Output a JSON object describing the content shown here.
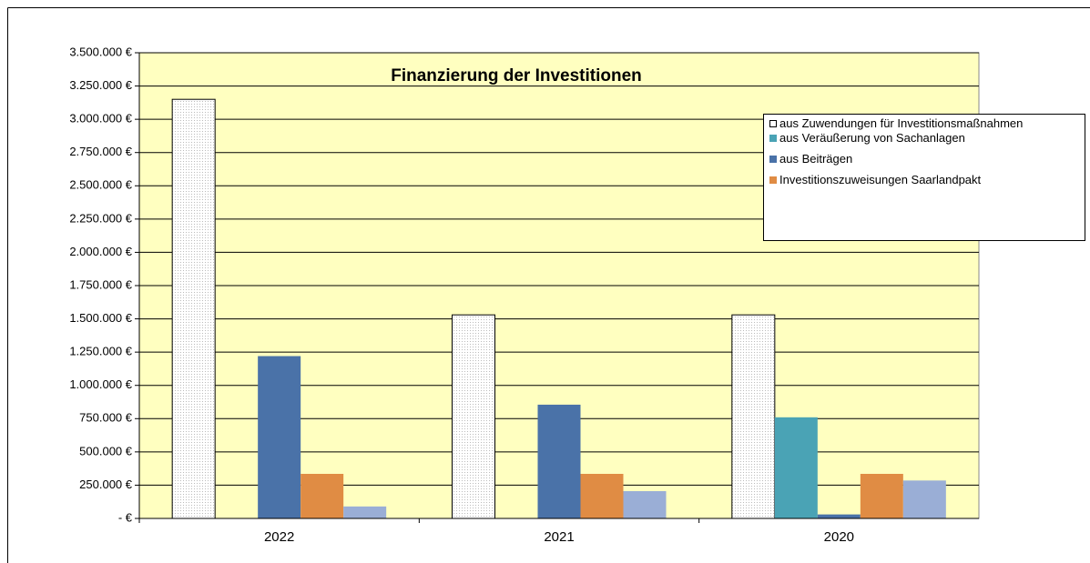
{
  "chart_data": {
    "type": "bar",
    "title": "Finanzierung der Investitionen",
    "categories": [
      "2022",
      "2021",
      "2020"
    ],
    "series": [
      {
        "name": "aus Zuwendungen für Investitionsmaßnahmen",
        "color": "#ffffff",
        "values": [
          3150000,
          1530000,
          1530000
        ]
      },
      {
        "name": "aus Veräußerung von Sachanlagen",
        "color": "#4aa3b5",
        "values": [
          0,
          0,
          760000
        ]
      },
      {
        "name": "aus Beiträgen",
        "color": "#4a72a8",
        "values": [
          1220000,
          855000,
          30000
        ]
      },
      {
        "name": "Investitionszuweisungen Saarlandpakt",
        "color": "#e08c44",
        "values": [
          335000,
          335000,
          335000
        ]
      },
      {
        "color": "#9aaed6",
        "values": [
          90000,
          205000,
          285000
        ]
      }
    ],
    "ylim": [
      0,
      3500000
    ],
    "yticks": [
      {
        "value": 0,
        "label": "- €"
      },
      {
        "value": 250000,
        "label": "250.000 €"
      },
      {
        "value": 500000,
        "label": "500.000 €"
      },
      {
        "value": 750000,
        "label": "750.000 €"
      },
      {
        "value": 1000000,
        "label": "1.000.000 €"
      },
      {
        "value": 1250000,
        "label": "1.250.000 €"
      },
      {
        "value": 1500000,
        "label": "1.500.000 €"
      },
      {
        "value": 1750000,
        "label": "1.750.000 €"
      },
      {
        "value": 2000000,
        "label": "2.000.000 €"
      },
      {
        "value": 2250000,
        "label": "2.250.000 €"
      },
      {
        "value": 2500000,
        "label": "2.500.000 €"
      },
      {
        "value": 2750000,
        "label": "2.750.000 €"
      },
      {
        "value": 3000000,
        "label": "3.000.000 €"
      },
      {
        "value": 3250000,
        "label": "3.250.000 €"
      },
      {
        "value": 3500000,
        "label": "3.500.000 €"
      }
    ],
    "grid": true,
    "plot_background": "#ffffc0"
  }
}
